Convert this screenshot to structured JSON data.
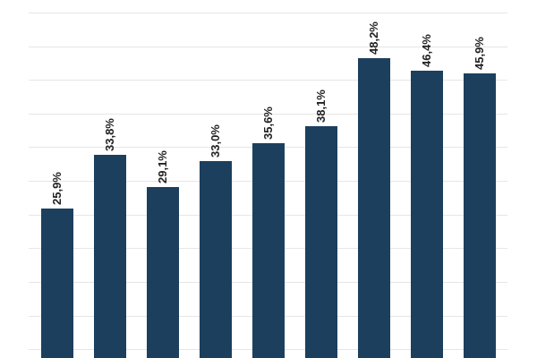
{
  "chart_data": {
    "type": "bar",
    "title": "",
    "xlabel": "",
    "ylabel": "",
    "categories": [
      "",
      "",
      "",
      "",
      "",
      "",
      "",
      "",
      ""
    ],
    "values": [
      25.9,
      33.8,
      29.1,
      33.0,
      35.6,
      38.1,
      48.2,
      46.4,
      45.9
    ],
    "labels": [
      "25,9%",
      "33,8%",
      "29,1%",
      "33,0%",
      "35,6%",
      "38,1%",
      "48,2%",
      "46,4%",
      "45,9%"
    ],
    "ylim": [
      0,
      55
    ],
    "grid": true,
    "grid_step": 5,
    "bar_color": "#1c3f5e",
    "legend": null
  }
}
